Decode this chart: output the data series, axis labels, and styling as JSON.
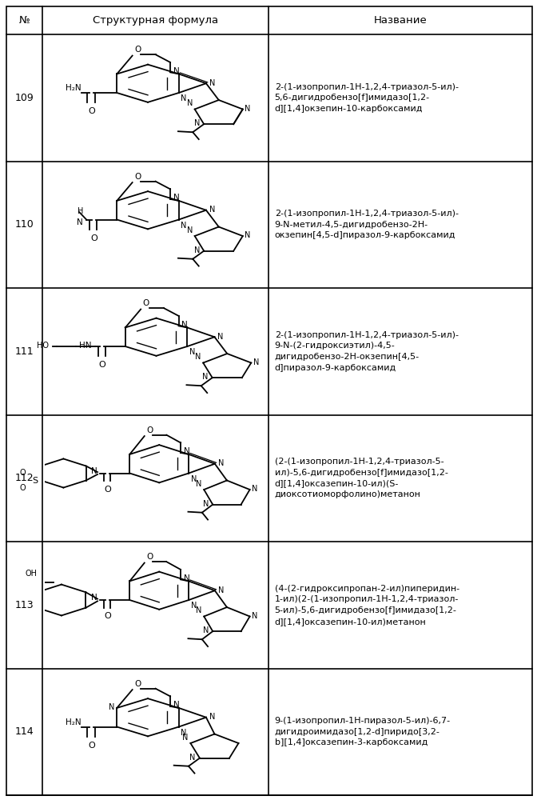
{
  "headers": [
    "№",
    "Структурная формула",
    "Название"
  ],
  "rows": [
    {
      "num": "109",
      "name": "2-(1-изопропил-1Н-1,2,4-триазол-5-ил)-\n5,6-дигидробензо[f]имидазо[1,2-\nd][1,4]окзепин-10-карбоксамид"
    },
    {
      "num": "110",
      "name": "2-(1-изопропил-1Н-1,2,4-триазол-5-ил)-\n9-N-метил-4,5-дигидробензо-2Н-\nокзепин[4,5-d]пиразол-9-карбоксамид"
    },
    {
      "num": "111",
      "name": "2-(1-изопропил-1Н-1,2,4-триазол-5-ил)-\n9-N-(2-гидроксиэтил)-4,5-\nдигидробензо-2Н-окзепин[4,5-\nd]пиразол-9-карбоксамид"
    },
    {
      "num": "112",
      "name": "(2-(1-изопропил-1Н-1,2,4-триазол-5-\nил)-5,6-дигидробензо[f]имидазо[1,2-\nd][1,4]оксазепин-10-ил)(S-\nдиоксотиоморфолино)метанон"
    },
    {
      "num": "113",
      "name": "(4-(2-гидроксипропан-2-ил)пиперидин-\n1-ил)(2-(1-изопропил-1Н-1,2,4-триазол-\n5-ил)-5,6-дигидробензо[f]имидазо[1,2-\nd][1,4]оксазепин-10-ил)метанон"
    },
    {
      "num": "114",
      "name": "9-(1-изопропил-1Н-пиразол-5-ил)-6,7-\nдигидроимидазо[1,2-d]пиридо[3,2-\nb][1,4]оксазепин-3-карбоксамид"
    }
  ]
}
